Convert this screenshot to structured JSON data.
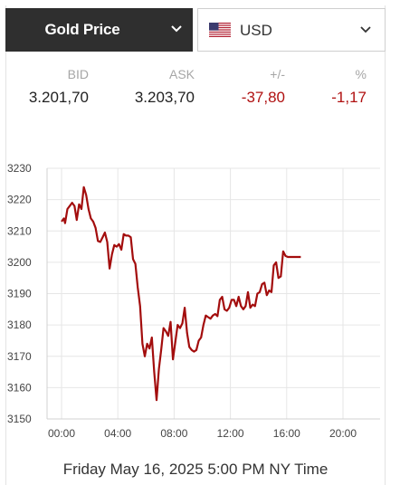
{
  "header": {
    "metal_label": "Gold Price",
    "currency_label": "USD"
  },
  "quote": {
    "bid_label": "BID",
    "ask_label": "ASK",
    "change_label": "+/-",
    "percent_label": "%",
    "bid": "3.201,70",
    "ask": "3.203,70",
    "change": "-37,80",
    "percent": "-1,17"
  },
  "colors": {
    "line": "#a30d0d",
    "negative": "#b01111",
    "header_bg": "#2f2f2f"
  },
  "icons": {
    "metal_dropdown": "chevron-down-icon",
    "currency_dropdown": "chevron-down-icon",
    "currency_flag": "us-flag-icon"
  },
  "chart_data": {
    "type": "line",
    "title": "",
    "xlabel": "",
    "ylabel": "",
    "ylim": [
      3150,
      3230
    ],
    "xlim": [
      "00:00",
      "20:00"
    ],
    "y_ticks": [
      3150,
      3160,
      3170,
      3180,
      3190,
      3200,
      3210,
      3220,
      3230
    ],
    "x_ticks": [
      "00:00",
      "04:00",
      "08:00",
      "12:00",
      "16:00",
      "20:00"
    ],
    "grid": true,
    "series": [
      {
        "x": [
          "00:00",
          "00:10",
          "00:15",
          "00:25",
          "00:35",
          "00:45",
          "00:55",
          "01:05",
          "01:15",
          "01:25",
          "01:35",
          "01:45",
          "01:55",
          "02:05",
          "02:15",
          "02:25",
          "02:35",
          "02:45",
          "02:55",
          "03:05",
          "03:15",
          "03:25",
          "03:35",
          "03:45",
          "03:55",
          "04:05",
          "04:15",
          "04:25",
          "04:35",
          "04:45",
          "04:55",
          "05:05",
          "05:15",
          "05:25",
          "05:35",
          "05:45",
          "05:55",
          "06:05",
          "06:15",
          "06:25",
          "06:35",
          "06:45",
          "06:55",
          "07:05",
          "07:15",
          "07:25",
          "07:35",
          "07:45",
          "07:55",
          "08:05",
          "08:15",
          "08:25",
          "08:35",
          "08:45",
          "08:55",
          "09:05",
          "09:15",
          "09:25",
          "09:35",
          "09:45",
          "09:55",
          "10:05",
          "10:15",
          "10:25",
          "10:35",
          "10:45",
          "10:55",
          "11:05",
          "11:15",
          "11:25",
          "11:35",
          "11:45",
          "11:55",
          "12:05",
          "12:15",
          "12:25",
          "12:35",
          "12:45",
          "12:55",
          "13:05",
          "13:15",
          "13:25",
          "13:35",
          "13:45",
          "13:55",
          "14:05",
          "14:15",
          "14:25",
          "14:35",
          "14:45",
          "14:55",
          "15:05",
          "15:15",
          "15:25",
          "15:35",
          "15:45",
          "15:55",
          "16:05",
          "16:15",
          "16:25",
          "16:35",
          "16:45",
          "16:55",
          "17:00"
        ],
        "values": [
          3213.0,
          3214.0,
          3212.5,
          3217.0,
          3218.0,
          3219.0,
          3218.0,
          3213.5,
          3218.5,
          3217.0,
          3224.0,
          3221.5,
          3217.0,
          3214.0,
          3213.0,
          3211.0,
          3206.8,
          3206.5,
          3208.0,
          3209.5,
          3206.5,
          3198.0,
          3202.5,
          3205.5,
          3205.0,
          3205.8,
          3204.0,
          3209.0,
          3208.5,
          3208.5,
          3208.0,
          3201.0,
          3199.5,
          3192.0,
          3186.0,
          3174.0,
          3170.0,
          3174.0,
          3172.5,
          3176.0,
          3165.0,
          3156.0,
          3166.0,
          3172.0,
          3179.0,
          3178.0,
          3176.5,
          3181.0,
          3169.0,
          3174.5,
          3180.0,
          3179.0,
          3180.5,
          3185.5,
          3177.5,
          3173.0,
          3172.0,
          3171.5,
          3172.0,
          3175.0,
          3176.0,
          3180.0,
          3183.0,
          3182.5,
          3182.0,
          3183.0,
          3183.5,
          3182.8,
          3188.0,
          3189.0,
          3185.0,
          3184.5,
          3185.5,
          3188.0,
          3188.0,
          3186.0,
          3189.0,
          3186.0,
          3185.0,
          3186.0,
          3190.5,
          3185.5,
          3186.5,
          3186.0,
          3190.0,
          3190.5,
          3193.0,
          3193.5,
          3189.5,
          3191.0,
          3190.5,
          3199.0,
          3200.0,
          3195.0,
          3195.5,
          3203.5,
          3202.0,
          3201.7,
          3201.7,
          3201.7,
          3201.7,
          3201.7,
          3201.7,
          3201.7
        ]
      }
    ]
  },
  "footer": {
    "timestamp": "Friday May 16, 2025 5:00 PM NY Time"
  }
}
